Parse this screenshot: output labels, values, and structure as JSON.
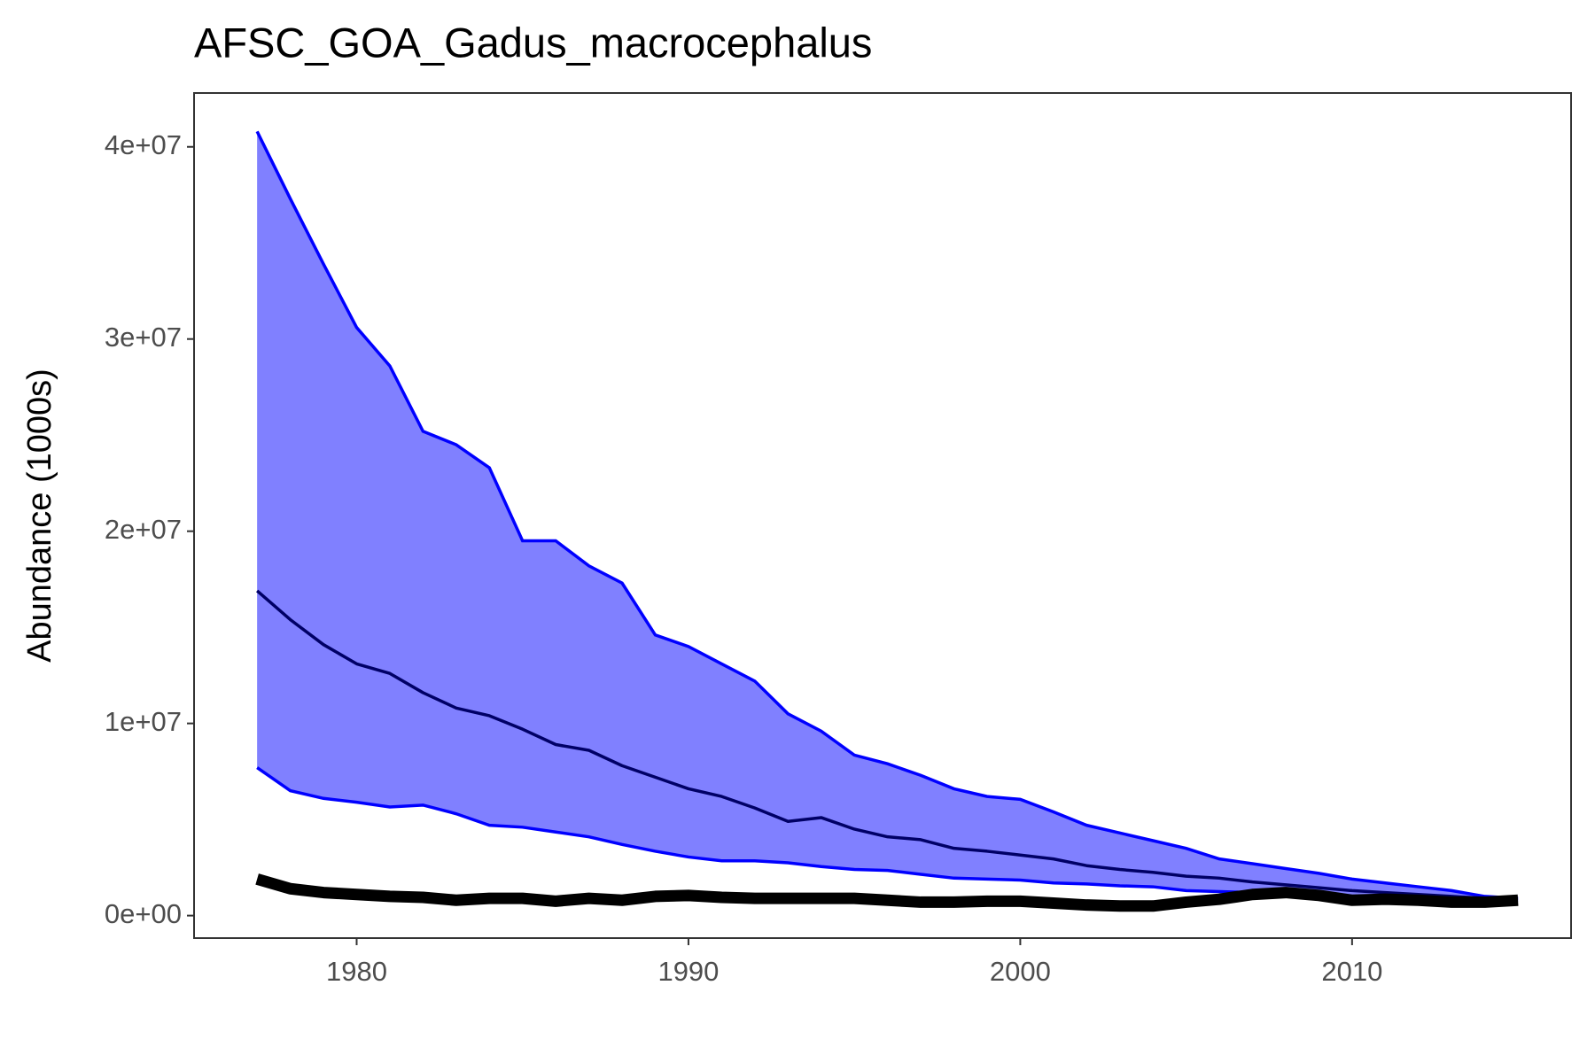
{
  "chart_data": {
    "type": "line",
    "title": "AFSC_GOA_Gadus_macrocephalus",
    "y_label": "Abundance (1000s)",
    "x": [
      1977,
      1978,
      1979,
      1980,
      1981,
      1982,
      1983,
      1984,
      1985,
      1986,
      1987,
      1988,
      1989,
      1990,
      1991,
      1992,
      1993,
      1994,
      1995,
      1996,
      1997,
      1998,
      1999,
      2000,
      2001,
      2002,
      2003,
      2004,
      2005,
      2006,
      2007,
      2008,
      2009,
      2010,
      2011,
      2012,
      2013,
      2014,
      2015
    ],
    "band": {
      "color": "#8080ff",
      "edge_color": "#0000ff",
      "upper": [
        40800000,
        37300000,
        33900000,
        30600000,
        28600000,
        25200000,
        24500000,
        23300000,
        19500000,
        19500000,
        18200000,
        17300000,
        14600000,
        14000000,
        13100000,
        12200000,
        10500000,
        9600000,
        8350000,
        7900000,
        7300000,
        6600000,
        6200000,
        6050000,
        5400000,
        4700000,
        4300000,
        3900000,
        3500000,
        2950000,
        2700000,
        2450000,
        2200000,
        1900000,
        1700000,
        1500000,
        1300000,
        1000000,
        900000
      ],
      "lower": [
        7700000,
        6500000,
        6100000,
        5900000,
        5650000,
        5750000,
        5300000,
        4700000,
        4600000,
        4350000,
        4100000,
        3700000,
        3350000,
        3050000,
        2850000,
        2850000,
        2750000,
        2550000,
        2400000,
        2350000,
        2150000,
        1950000,
        1900000,
        1850000,
        1700000,
        1650000,
        1550000,
        1500000,
        1300000,
        1250000,
        1200000,
        1150000,
        1100000,
        1000000,
        950000,
        900000,
        850000,
        800000,
        800000
      ]
    },
    "series": [
      {
        "color": "#000066",
        "width": 3.5,
        "values": [
          16900000,
          15400000,
          14100000,
          13100000,
          12600000,
          11600000,
          10800000,
          10400000,
          9700000,
          8900000,
          8600000,
          7800000,
          7200000,
          6600000,
          6200000,
          5600000,
          4900000,
          5100000,
          4500000,
          4100000,
          3950000,
          3500000,
          3350000,
          3150000,
          2950000,
          2600000,
          2400000,
          2250000,
          2050000,
          1950000,
          1750000,
          1600000,
          1450000,
          1300000,
          1200000,
          1100000,
          1000000,
          900000,
          900000
        ]
      },
      {
        "color": "#000000",
        "width": 13,
        "values": [
          1900000,
          1400000,
          1200000,
          1100000,
          1000000,
          950000,
          800000,
          900000,
          900000,
          750000,
          900000,
          800000,
          1000000,
          1050000,
          950000,
          900000,
          900000,
          900000,
          900000,
          800000,
          700000,
          700000,
          750000,
          750000,
          650000,
          550000,
          500000,
          500000,
          700000,
          850000,
          1100000,
          1200000,
          1050000,
          800000,
          850000,
          800000,
          700000,
          700000,
          800000
        ]
      }
    ],
    "xlim": [
      1975.1,
      2016.6
    ],
    "ylim": [
      -1170000,
      42800000
    ],
    "xticks": [
      1980,
      1990,
      2000,
      2010
    ],
    "yticks": [
      {
        "value": 0,
        "label": "0e+00"
      },
      {
        "value": 10000000,
        "label": "1e+07"
      },
      {
        "value": 20000000,
        "label": "2e+07"
      },
      {
        "value": 30000000,
        "label": "3e+07"
      },
      {
        "value": 40000000,
        "label": "4e+07"
      }
    ],
    "grid": false
  }
}
